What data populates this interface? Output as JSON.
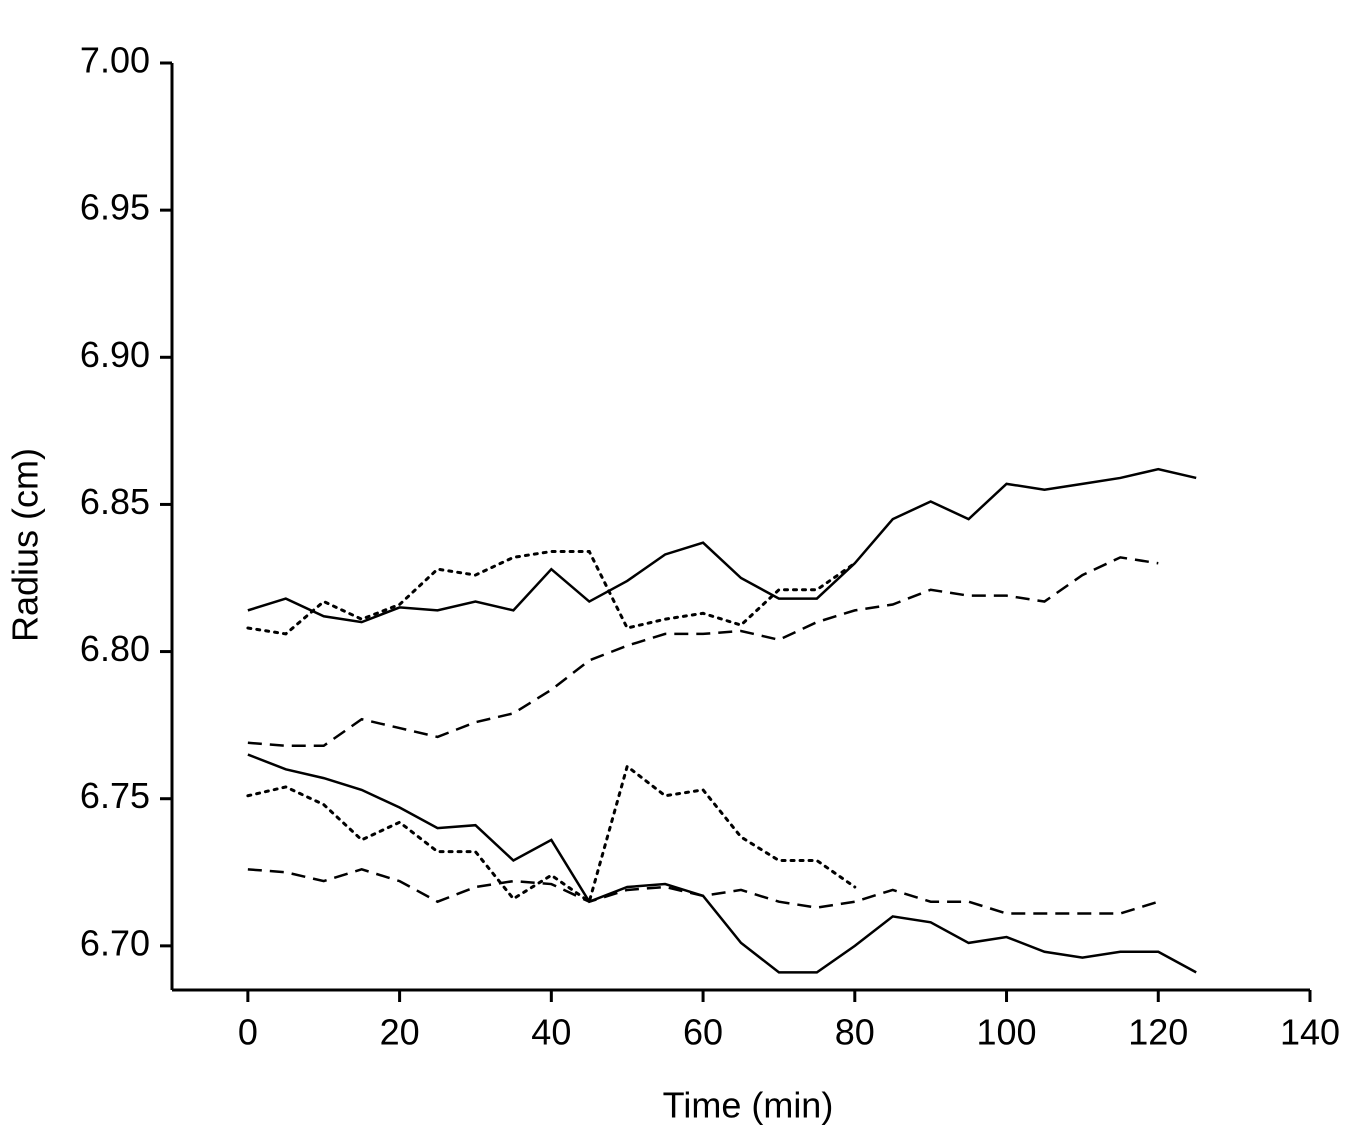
{
  "chart_data": {
    "type": "line",
    "x_label": "Time (min)",
    "y_label": "Radius (cm)",
    "x": [
      0,
      5,
      10,
      15,
      20,
      25,
      30,
      35,
      40,
      45,
      50,
      55,
      60,
      65,
      70,
      75,
      80,
      85,
      90,
      95,
      100,
      105,
      110,
      115,
      120,
      125
    ],
    "series": [
      {
        "color": "#000000",
        "dash": "solid",
        "values": [
          6.814,
          6.818,
          6.812,
          6.81,
          6.815,
          6.814,
          6.817,
          6.814,
          6.828,
          6.817,
          6.824,
          6.833,
          6.837,
          6.825,
          6.818,
          6.818,
          6.83,
          6.845,
          6.851,
          6.845,
          6.857,
          6.855,
          6.857,
          6.859,
          6.862,
          6.859
        ]
      },
      {
        "color": "#000000",
        "dash": "dotted",
        "values": [
          6.808,
          6.806,
          6.817,
          6.811,
          6.816,
          6.828,
          6.826,
          6.832,
          6.834,
          6.834,
          6.808,
          6.811,
          6.813,
          6.809,
          6.821,
          6.821,
          6.83,
          null,
          null,
          null,
          null,
          null,
          null,
          null,
          null,
          null
        ]
      },
      {
        "color": "#000000",
        "dash": "dashed",
        "values": [
          6.769,
          6.768,
          6.768,
          6.777,
          6.774,
          6.771,
          6.776,
          6.779,
          6.787,
          6.797,
          6.802,
          6.806,
          6.806,
          6.807,
          6.804,
          6.81,
          6.814,
          6.816,
          6.821,
          6.819,
          6.819,
          6.817,
          6.826,
          6.832,
          6.83,
          null
        ]
      },
      {
        "color": "#000000",
        "dash": "solid",
        "values": [
          6.765,
          6.76,
          6.757,
          6.753,
          6.747,
          6.74,
          6.741,
          6.729,
          6.736,
          6.715,
          6.72,
          6.721,
          6.717,
          6.701,
          6.691,
          6.691,
          6.7,
          6.71,
          6.708,
          6.701,
          6.703,
          6.698,
          6.696,
          6.698,
          6.698,
          6.691
        ]
      },
      {
        "color": "#000000",
        "dash": "dotted",
        "values": [
          6.751,
          6.754,
          6.748,
          6.736,
          6.742,
          6.732,
          6.732,
          6.716,
          6.724,
          6.715,
          6.761,
          6.751,
          6.753,
          6.737,
          6.729,
          6.729,
          6.72,
          null,
          null,
          null,
          null,
          null,
          null,
          null,
          null,
          null
        ]
      },
      {
        "color": "#000000",
        "dash": "dashed",
        "values": [
          6.726,
          6.725,
          6.722,
          6.726,
          6.722,
          6.715,
          6.72,
          6.722,
          6.721,
          6.715,
          6.719,
          6.72,
          6.717,
          6.719,
          6.715,
          6.713,
          6.715,
          6.719,
          6.715,
          6.715,
          6.711,
          6.711,
          6.711,
          6.711,
          6.715,
          null
        ]
      }
    ],
    "xlim": [
      -10,
      140
    ],
    "xticks": [
      0,
      20,
      40,
      60,
      80,
      100,
      120,
      140
    ],
    "ylim": [
      6.685,
      7.0
    ],
    "yticks": [
      {
        "value": 6.7,
        "label": "6.70"
      },
      {
        "value": 6.75,
        "label": "6.75"
      },
      {
        "value": 6.8,
        "label": "6.80"
      },
      {
        "value": 6.85,
        "label": "6.85"
      },
      {
        "value": 6.9,
        "label": "6.90"
      },
      {
        "value": 6.95,
        "label": "6.95"
      },
      {
        "value": 7.0,
        "label": "7.00"
      }
    ],
    "grid": false
  }
}
